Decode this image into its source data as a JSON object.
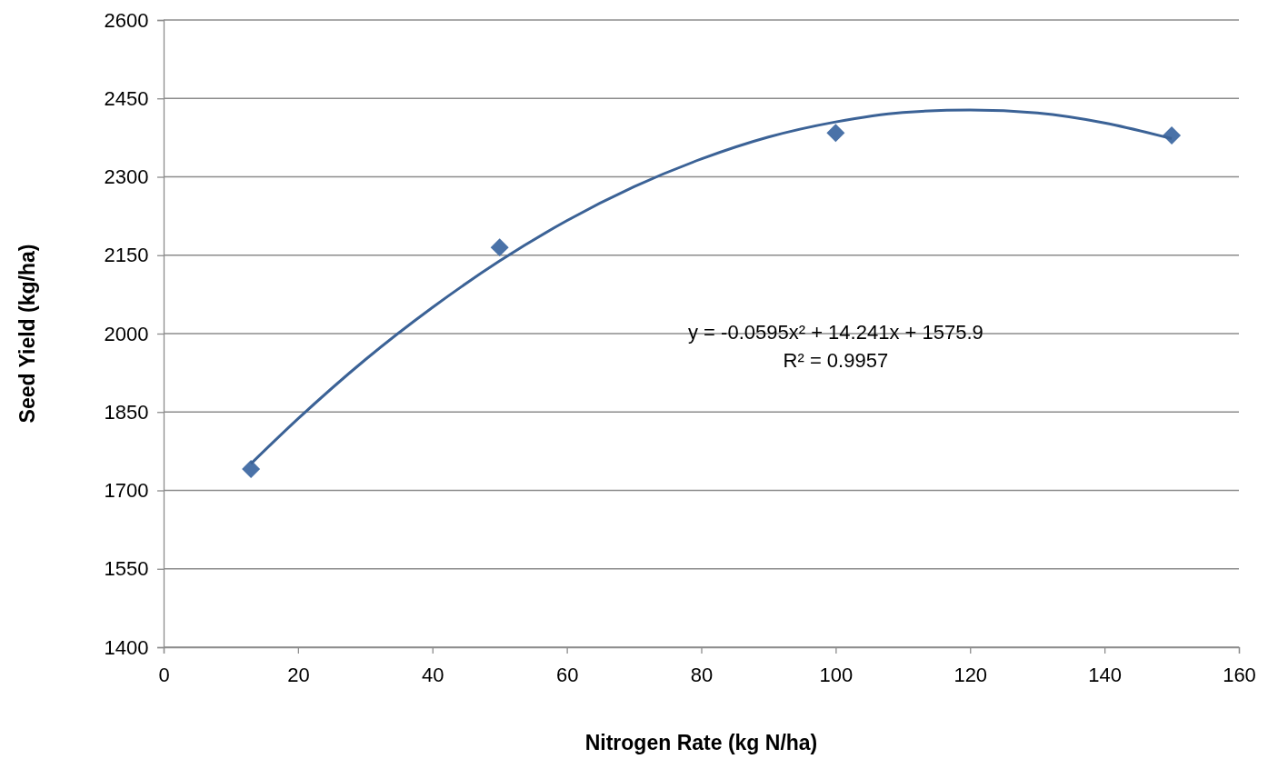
{
  "chart_data": {
    "type": "scatter",
    "xlabel": "Nitrogen Rate (kg N/ha)",
    "ylabel": "Seed Yield (kg/ha)",
    "xlim": [
      0,
      160
    ],
    "xticks": [
      0,
      20,
      40,
      60,
      80,
      100,
      120,
      140,
      160
    ],
    "ylim": [
      1400,
      2600
    ],
    "yticks": [
      1400,
      1550,
      1700,
      1850,
      2000,
      2150,
      2300,
      2450,
      2600
    ],
    "grid": "y",
    "series": [
      {
        "marker": "diamond",
        "color": "#4a72a8",
        "x": [
          13,
          50,
          100,
          150
        ],
        "values": [
          1741,
          2165,
          2384,
          2379
        ]
      },
      {
        "type": "line",
        "marker": "none",
        "line_style": "solid",
        "color": "#3b6296",
        "x": [
          13,
          20,
          30,
          40,
          50,
          60,
          70,
          80,
          90,
          100,
          110,
          120,
          130,
          140,
          150
        ],
        "values": [
          1751,
          1837,
          1950,
          2050,
          2139,
          2216,
          2281,
          2334,
          2376,
          2405,
          2423,
          2428,
          2422,
          2403,
          2373
        ]
      }
    ],
    "annotations": [
      "y = -0.0595x² + 14.241x + 1575.9",
      "R² = 0.9957"
    ]
  }
}
